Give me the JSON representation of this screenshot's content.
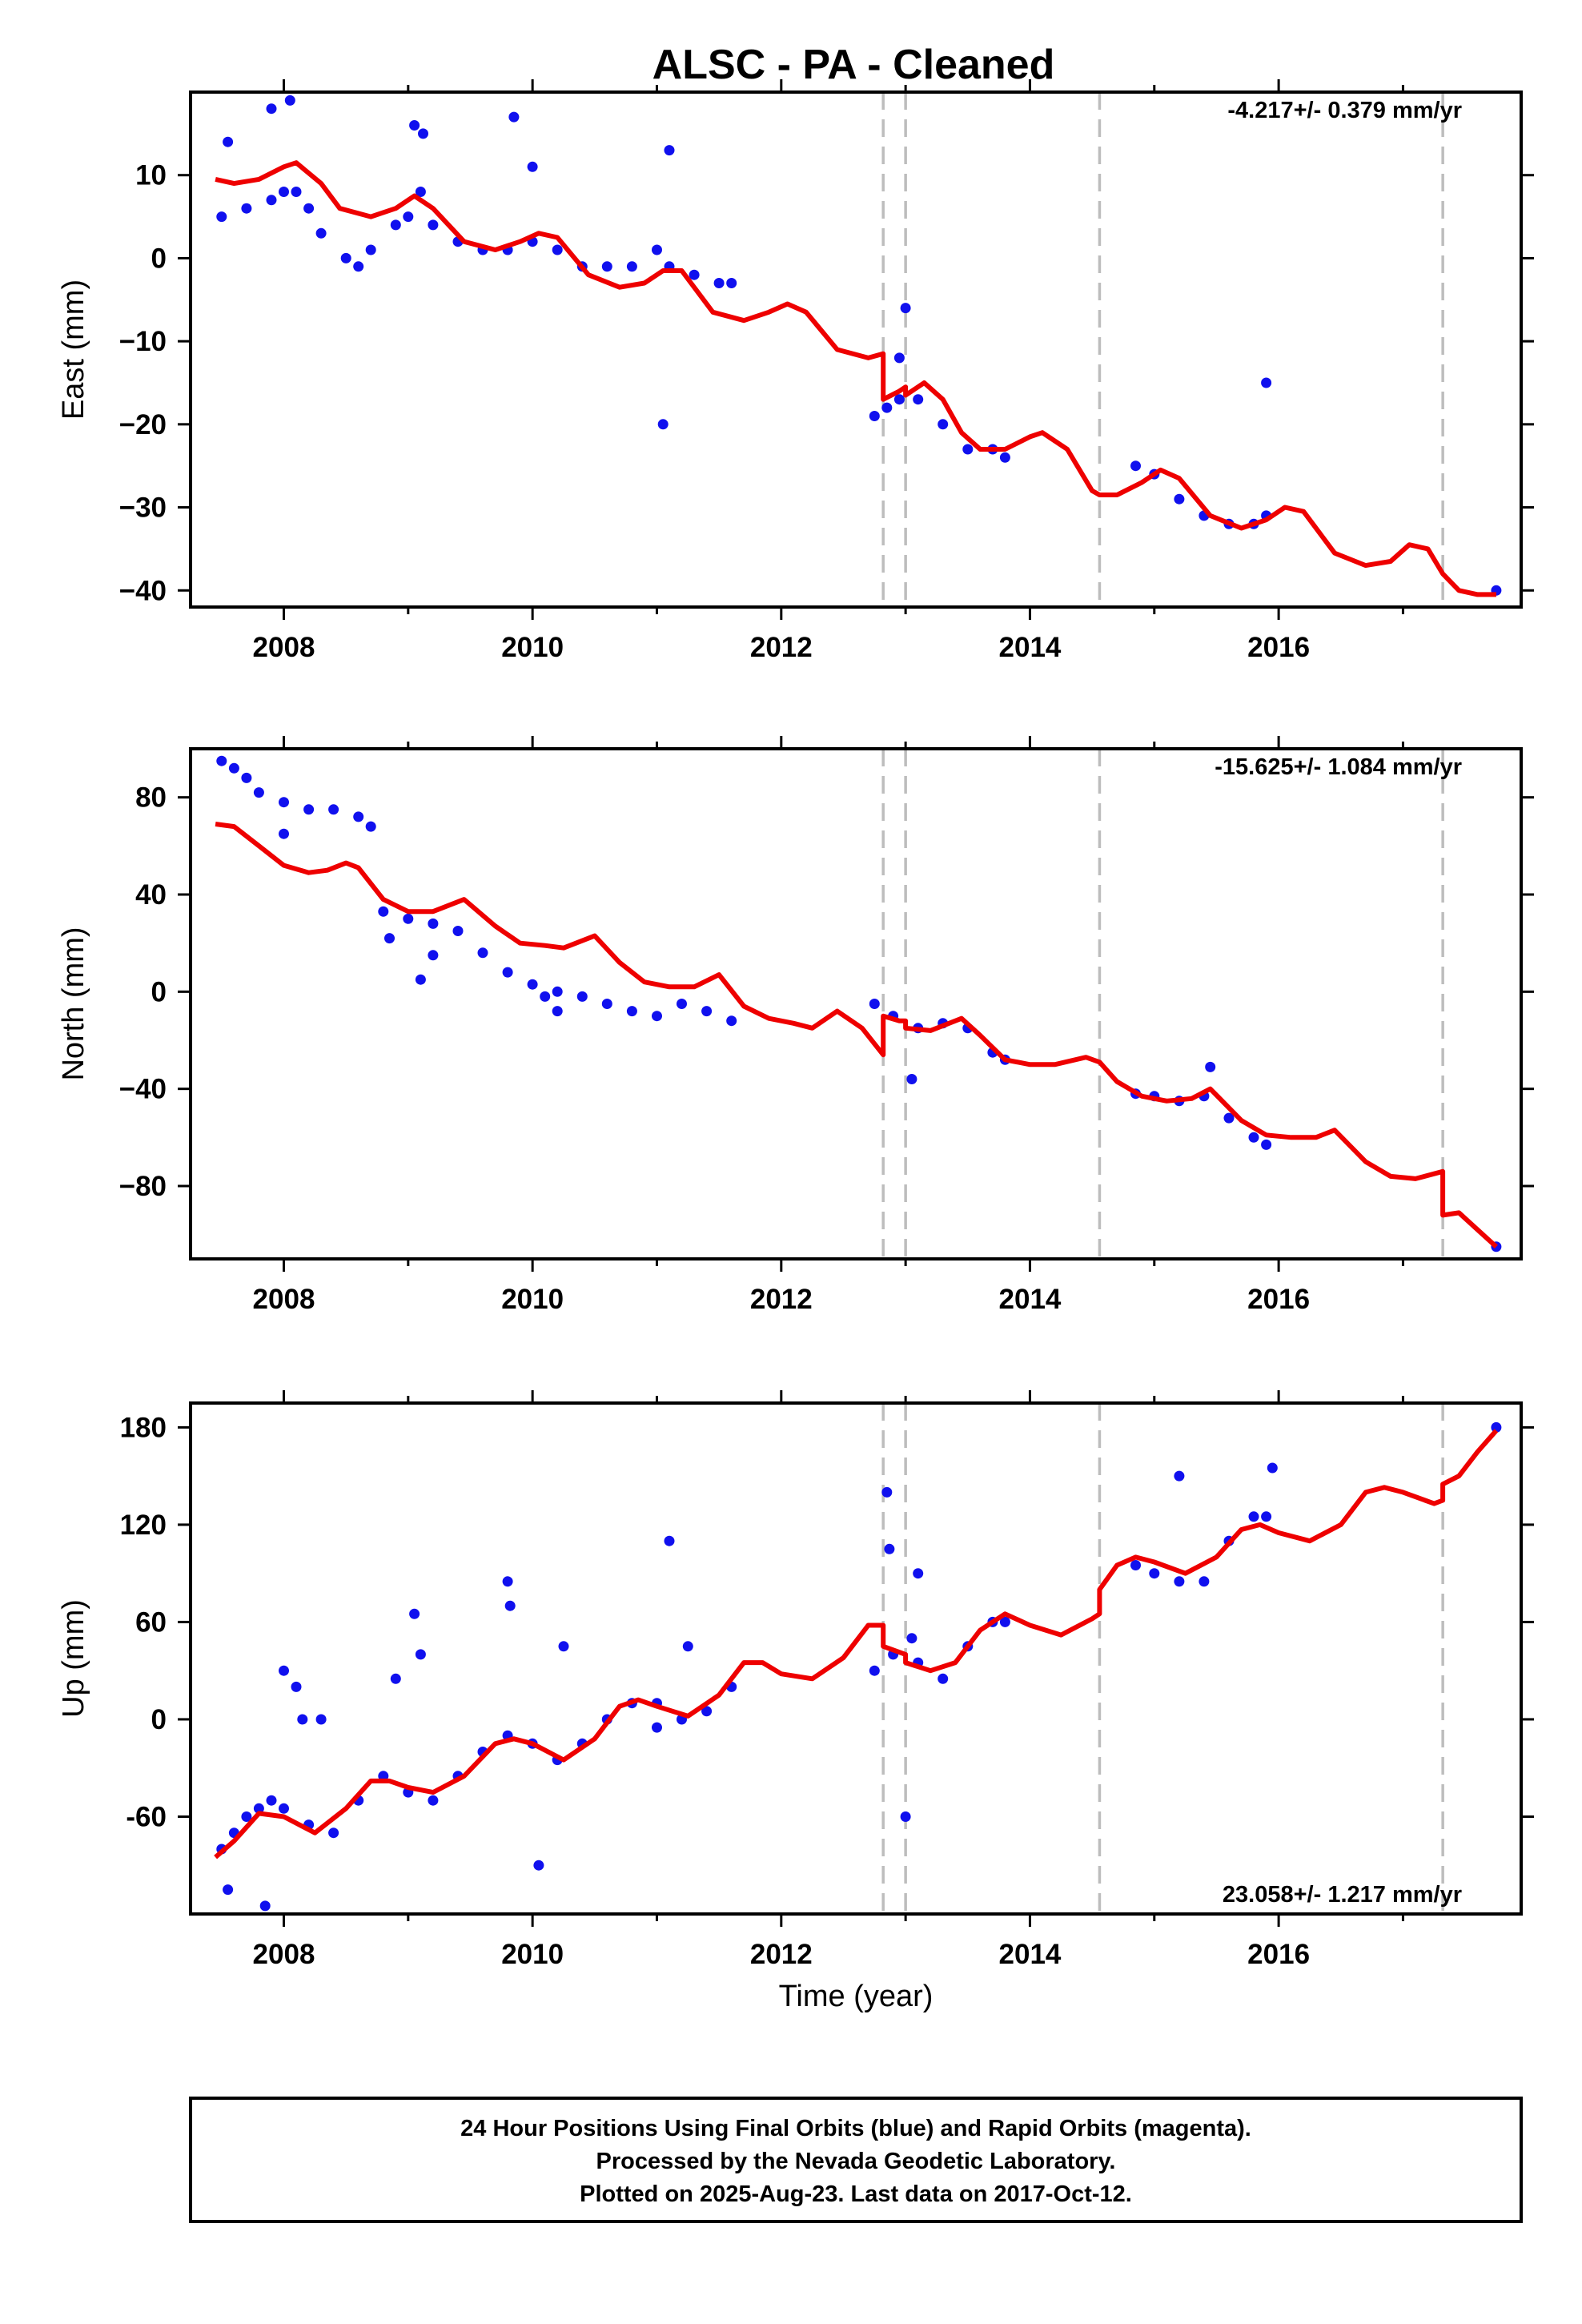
{
  "title": "ALSC  - PA - Cleaned",
  "colors": {
    "data": "#1010ee",
    "model": "#ee0000",
    "offset_line": "#bdbdbd",
    "frame": "#000000"
  },
  "offset_epochs": [
    2012.82,
    2013.0,
    2014.56,
    2017.32
  ],
  "xaxis": {
    "label": "Time (year)",
    "range": [
      2007.25,
      2017.95
    ],
    "ticks": [
      2008,
      2010,
      2012,
      2014,
      2016
    ]
  },
  "footer": {
    "line1": "24 Hour Positions Using Final Orbits (blue) and Rapid Orbits (magenta).",
    "line2": "Processed by the Nevada Geodetic Laboratory.",
    "line3": "Plotted on 2025-Aug-23. Last data on 2017-Oct-12."
  },
  "chart_data": [
    {
      "type": "scatter",
      "component": "East",
      "ylabel": "East (mm)",
      "rate": "-4.217+/- 0.379 mm/yr",
      "rate_position": "top-right",
      "ylim": [
        -42,
        20
      ],
      "yticks": [
        -40,
        -30,
        -20,
        -10,
        0,
        10
      ],
      "ytick_labels": [
        "−40",
        "−30",
        "−20",
        "−10",
        "0",
        "10"
      ],
      "series": [
        {
          "x": [
            2007.5,
            2007.7,
            2007.9,
            2008.0,
            2008.1,
            2008.2,
            2008.3,
            2008.5,
            2008.6,
            2008.7,
            2008.9,
            2009.0,
            2009.1,
            2009.2,
            2009.4,
            2009.6,
            2009.8,
            2010.0,
            2010.2,
            2010.4,
            2010.6,
            2010.8,
            2011.0,
            2011.1,
            2011.3,
            2011.5,
            2011.6,
            2012.75,
            2012.85,
            2012.95,
            2013.1,
            2013.3,
            2013.5,
            2013.7,
            2013.8,
            2014.85,
            2015.0,
            2015.2,
            2015.4,
            2015.6,
            2015.8,
            2015.9,
            2017.75
          ],
          "y": [
            5,
            6,
            7,
            8,
            8,
            6,
            3,
            0,
            -1,
            1,
            4,
            5,
            8,
            4,
            2,
            1,
            1,
            2,
            1,
            -1,
            -1,
            -1,
            1,
            -1,
            -2,
            -3,
            -3,
            -19,
            -18,
            -17,
            -17,
            -20,
            -23,
            -23,
            -24,
            -25,
            -26,
            -29,
            -31,
            -32,
            -32,
            -31,
            -40
          ]
        },
        {
          "x": [
            2007.55,
            2007.9,
            2008.05,
            2009.05,
            2009.12,
            2009.85,
            2010.0,
            2011.1,
            2011.05,
            2012.95,
            2013.0,
            2015.9
          ],
          "y": [
            14,
            18,
            19,
            16,
            15,
            17,
            11,
            13,
            -20,
            -12,
            -6,
            -15
          ]
        }
      ],
      "model": {
        "x": [
          2007.45,
          2007.6,
          2007.8,
          2008.0,
          2008.1,
          2008.3,
          2008.45,
          2008.7,
          2008.9,
          2009.05,
          2009.2,
          2009.45,
          2009.7,
          2009.9,
          2010.05,
          2010.2,
          2010.45,
          2010.7,
          2010.9,
          2011.05,
          2011.2,
          2011.45,
          2011.7,
          2011.9,
          2012.05,
          2012.2,
          2012.45,
          2012.7,
          2012.82,
          2012.82,
          2012.95,
          2013.0,
          2013.0,
          2013.15,
          2013.3,
          2013.45,
          2013.6,
          2013.8,
          2014.0,
          2014.1,
          2014.3,
          2014.5,
          2014.56,
          2014.56,
          2014.7,
          2014.9,
          2015.05,
          2015.2,
          2015.45,
          2015.7,
          2015.9,
          2016.05,
          2016.2,
          2016.45,
          2016.7,
          2016.9,
          2017.05,
          2017.2,
          2017.32,
          2017.32,
          2017.45,
          2017.6,
          2017.75
        ],
        "y": [
          9.5,
          9,
          9.5,
          11,
          11.5,
          9,
          6,
          5,
          6,
          7.5,
          6,
          2,
          1,
          2,
          3,
          2.5,
          -2,
          -3.5,
          -3,
          -1.5,
          -1.5,
          -6.5,
          -7.5,
          -6.5,
          -5.5,
          -6.5,
          -11,
          -12,
          -11.5,
          -17,
          -16,
          -15.5,
          -16.5,
          -15,
          -17,
          -21,
          -23,
          -23,
          -21.5,
          -21,
          -23,
          -28,
          -28.5,
          -28.5,
          -28.5,
          -27,
          -25.5,
          -26.5,
          -31,
          -32.5,
          -31.5,
          -30,
          -30.5,
          -35.5,
          -37,
          -36.5,
          -34.5,
          -35,
          -38,
          -38,
          -40,
          -40.5,
          -40.5
        ]
      }
    },
    {
      "type": "scatter",
      "component": "North",
      "ylabel": "North (mm)",
      "rate": "-15.625+/- 1.084 mm/yr",
      "rate_position": "top-right",
      "ylim": [
        -110,
        100
      ],
      "yticks": [
        -80,
        -40,
        0,
        40,
        80
      ],
      "ytick_labels": [
        "−80",
        "−40",
        "0",
        "40",
        "80"
      ],
      "series": [
        {
          "x": [
            2007.5,
            2007.6,
            2007.7,
            2007.8,
            2008.0,
            2008.2,
            2008.4,
            2008.6,
            2008.7,
            2008.8,
            2009.0,
            2009.2,
            2009.4,
            2009.6,
            2009.8,
            2010.0,
            2010.2,
            2010.4,
            2010.6,
            2010.8,
            2011.0,
            2011.2,
            2011.4,
            2011.6,
            2012.75,
            2012.9,
            2013.1,
            2013.3,
            2013.5,
            2013.7,
            2013.8,
            2014.85,
            2015.0,
            2015.2,
            2015.4,
            2015.6,
            2015.8,
            2015.9,
            2017.75
          ],
          "y": [
            95,
            92,
            88,
            82,
            78,
            75,
            75,
            72,
            68,
            33,
            30,
            28,
            25,
            16,
            8,
            3,
            0,
            -2,
            -5,
            -8,
            -10,
            -5,
            -8,
            -12,
            -5,
            -10,
            -15,
            -13,
            -15,
            -25,
            -28,
            -42,
            -43,
            -45,
            -43,
            -52,
            -60,
            -63,
            -105
          ]
        },
        {
          "x": [
            2008.0,
            2008.85,
            2009.1,
            2009.2,
            2010.1,
            2010.2,
            2013.05,
            2015.45
          ],
          "y": [
            65,
            22,
            5,
            15,
            -2,
            -8,
            -36,
            -31
          ]
        }
      ],
      "model": {
        "x": [
          2007.45,
          2007.6,
          2007.8,
          2008.0,
          2008.2,
          2008.35,
          2008.5,
          2008.6,
          2008.8,
          2009.0,
          2009.2,
          2009.45,
          2009.7,
          2009.9,
          2010.1,
          2010.25,
          2010.5,
          2010.7,
          2010.9,
          2011.1,
          2011.3,
          2011.5,
          2011.7,
          2011.9,
          2012.1,
          2012.25,
          2012.45,
          2012.65,
          2012.82,
          2012.82,
          2012.95,
          2013.0,
          2013.0,
          2013.2,
          2013.45,
          2013.6,
          2013.8,
          2014.0,
          2014.2,
          2014.45,
          2014.56,
          2014.56,
          2014.7,
          2014.9,
          2015.1,
          2015.3,
          2015.45,
          2015.7,
          2015.9,
          2016.1,
          2016.3,
          2016.45,
          2016.7,
          2016.9,
          2017.1,
          2017.32,
          2017.32,
          2017.45,
          2017.6,
          2017.75
        ],
        "y": [
          69,
          68,
          60,
          52,
          49,
          50,
          53,
          51,
          38,
          33,
          33,
          38,
          27,
          20,
          19,
          18,
          23,
          12,
          4,
          2,
          2,
          7,
          -6,
          -11,
          -13,
          -15,
          -8,
          -15,
          -26,
          -10,
          -12,
          -12,
          -15,
          -16,
          -11,
          -18,
          -28,
          -30,
          -30,
          -27,
          -29,
          -29,
          -37,
          -43,
          -45,
          -44,
          -40,
          -53,
          -59,
          -60,
          -60,
          -57,
          -70,
          -76,
          -77,
          -74,
          -92,
          -91,
          -98,
          -105
        ]
      }
    },
    {
      "type": "scatter",
      "component": "Up",
      "ylabel": "Up (mm)",
      "rate": "23.058+/- 1.217 mm/yr",
      "rate_position": "bottom-right",
      "ylim": [
        -120,
        195
      ],
      "yticks": [
        -60,
        0,
        60,
        120,
        180
      ],
      "ytick_labels": [
        "-60",
        "0",
        "60",
        "120",
        "180"
      ],
      "series": [
        {
          "x": [
            2007.5,
            2007.6,
            2007.7,
            2007.8,
            2007.9,
            2008.0,
            2008.2,
            2008.4,
            2008.6,
            2008.8,
            2009.0,
            2009.2,
            2009.4,
            2009.6,
            2009.8,
            2010.0,
            2010.2,
            2010.4,
            2010.6,
            2010.8,
            2011.0,
            2011.2,
            2011.4,
            2011.6,
            2012.75,
            2012.9,
            2013.1,
            2013.3,
            2013.5,
            2013.7,
            2013.8,
            2014.85,
            2015.0,
            2015.2,
            2015.4,
            2015.6,
            2015.8,
            2015.9,
            2017.75
          ],
          "y": [
            -80,
            -70,
            -60,
            -55,
            -50,
            -55,
            -65,
            -70,
            -50,
            -35,
            -45,
            -50,
            -35,
            -20,
            -10,
            -15,
            -25,
            -15,
            0,
            10,
            10,
            0,
            5,
            20,
            30,
            40,
            35,
            25,
            45,
            60,
            60,
            95,
            90,
            85,
            85,
            110,
            125,
            125,
            180
          ]
        },
        {
          "x": [
            2007.55,
            2007.85,
            2008.1,
            2008.15,
            2008.3,
            2008.9,
            2009.05,
            2009.1,
            2009.8,
            2009.82,
            2010.05,
            2010.25,
            2011.1,
            2011.25,
            2011.0,
            2012.85,
            2012.87,
            2013.0,
            2013.1,
            2013.05,
            2015.2,
            2015.95,
            2008.0
          ],
          "y": [
            -105,
            -115,
            20,
            0,
            0,
            25,
            65,
            40,
            85,
            70,
            -90,
            45,
            110,
            45,
            -5,
            140,
            105,
            -60,
            90,
            50,
            150,
            155,
            30
          ]
        }
      ],
      "model": {
        "x": [
          2007.45,
          2007.6,
          2007.8,
          2008.0,
          2008.25,
          2008.5,
          2008.7,
          2008.85,
          2009.0,
          2009.2,
          2009.45,
          2009.7,
          2009.85,
          2010.0,
          2010.25,
          2010.5,
          2010.7,
          2010.85,
          2011.0,
          2011.25,
          2011.5,
          2011.7,
          2011.85,
          2012.0,
          2012.25,
          2012.5,
          2012.7,
          2012.82,
          2012.82,
          2013.0,
          2013.0,
          2013.2,
          2013.4,
          2013.6,
          2013.8,
          2014.0,
          2014.25,
          2014.5,
          2014.56,
          2014.56,
          2014.7,
          2014.85,
          2015.0,
          2015.25,
          2015.5,
          2015.7,
          2015.85,
          2016.0,
          2016.25,
          2016.5,
          2016.7,
          2016.85,
          2017.0,
          2017.25,
          2017.32,
          2017.32,
          2017.45,
          2017.6,
          2017.75
        ],
        "y": [
          -85,
          -75,
          -58,
          -60,
          -70,
          -55,
          -38,
          -38,
          -42,
          -45,
          -35,
          -15,
          -12,
          -15,
          -25,
          -12,
          8,
          12,
          8,
          2,
          15,
          35,
          35,
          28,
          25,
          38,
          58,
          58,
          45,
          40,
          35,
          30,
          35,
          55,
          65,
          58,
          52,
          62,
          65,
          80,
          95,
          100,
          97,
          90,
          100,
          117,
          120,
          115,
          110,
          120,
          140,
          143,
          140,
          133,
          135,
          145,
          150,
          165,
          178
        ]
      }
    }
  ]
}
